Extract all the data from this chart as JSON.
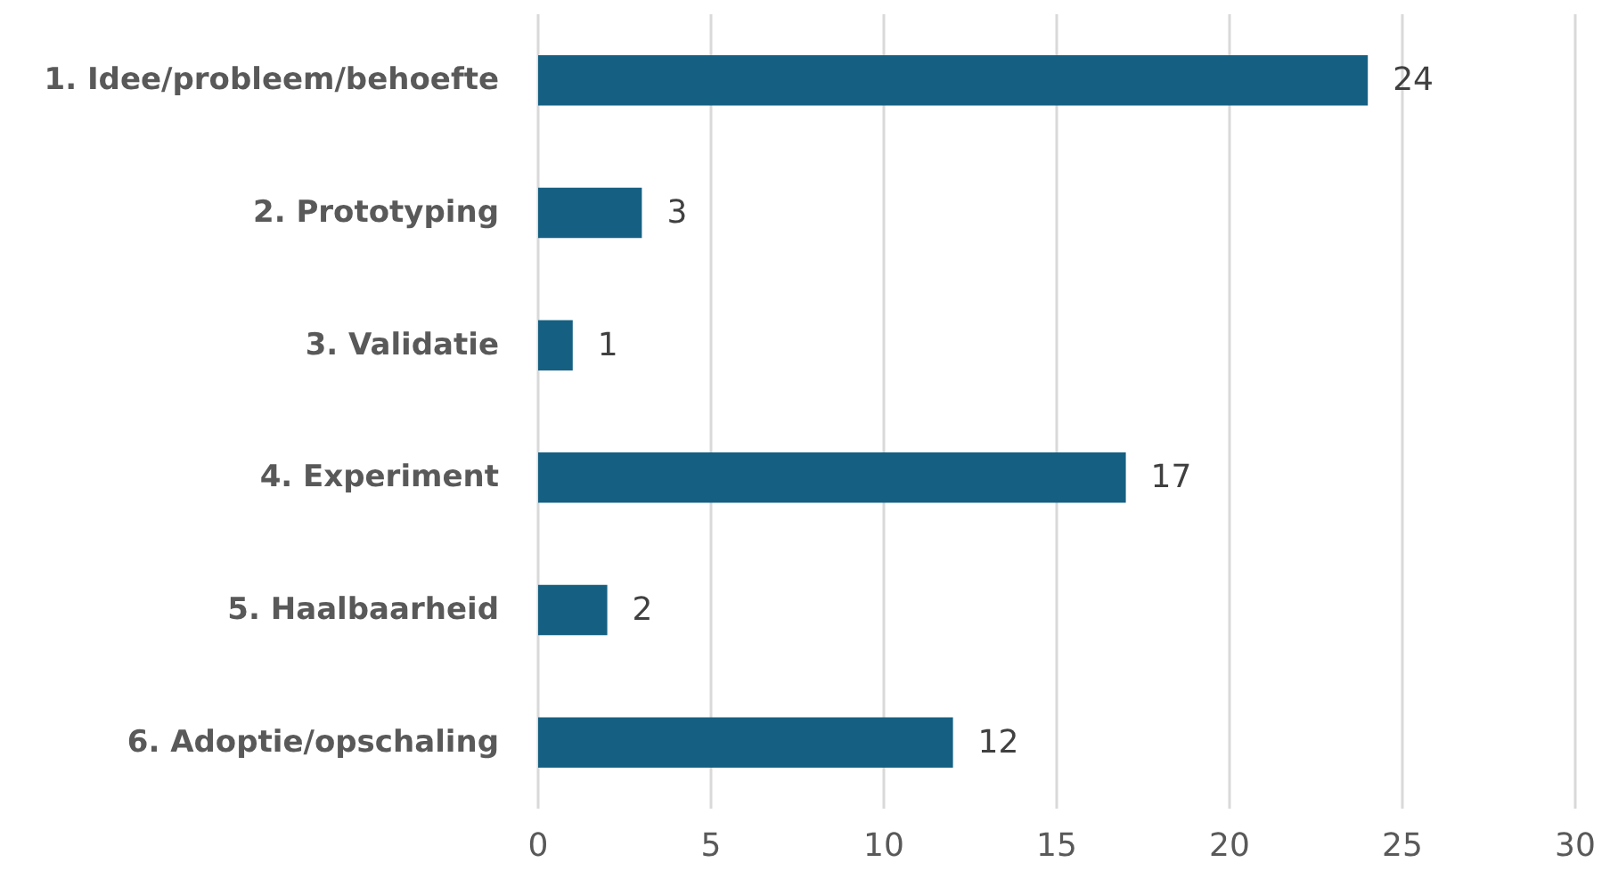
{
  "chart_data": {
    "type": "bar",
    "orientation": "horizontal",
    "categories": [
      "1. Idee/probleem/behoefte",
      "2. Prototyping",
      "3. Validatie",
      "4. Experiment",
      "5. Haalbaarheid",
      "6. Adoptie/opschaling"
    ],
    "values": [
      24,
      3,
      1,
      17,
      2,
      12
    ],
    "color": "#156082",
    "xlim": [
      0,
      30
    ],
    "xticks": [
      0,
      5,
      10,
      15,
      20,
      25,
      30
    ],
    "grid": "x",
    "data_labels": true
  }
}
